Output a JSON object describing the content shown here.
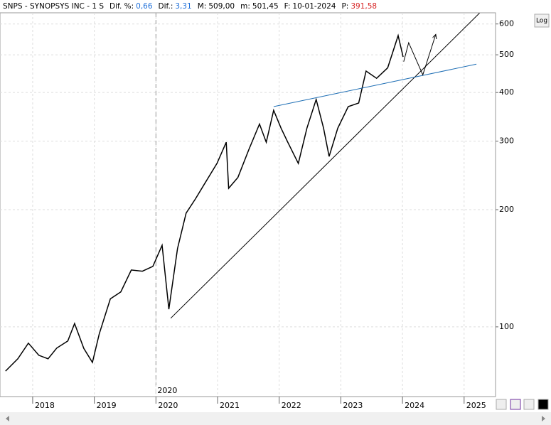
{
  "chart_data": {
    "type": "line",
    "log_scale": true,
    "grid": true,
    "header": [
      {
        "label": "SNPS - SYNOPSYS INC - 1 S"
      },
      {
        "label": "Dif. %:",
        "value": "0,66",
        "color": "#1e6fd9"
      },
      {
        "label": "Dif.:",
        "value": "3,31",
        "color": "#1e6fd9"
      },
      {
        "label": "M:",
        "value": "509,00",
        "color": "#000000"
      },
      {
        "label": "m:",
        "value": "501,45",
        "color": "#000000"
      },
      {
        "label": "F:",
        "value": "10-01-2024",
        "color": "#000000"
      },
      {
        "label": "P:",
        "value": "391,58",
        "color": "#d62020"
      }
    ],
    "scale_button": "Log",
    "cursor": {
      "x": 2020,
      "label": "2020"
    },
    "series": [
      {
        "name": "SNPS",
        "color": "#000000",
        "x": [
          2017.56,
          2017.76,
          2017.93,
          2018.1,
          2018.25,
          2018.39,
          2018.57,
          2018.68,
          2018.83,
          2018.97,
          2019.08,
          2019.26,
          2019.43,
          2019.6,
          2019.78,
          2019.95,
          2020.1,
          2020.21,
          2020.35,
          2020.49,
          2020.64,
          2020.81,
          2020.99,
          2021.14,
          2021.18,
          2021.33,
          2021.51,
          2021.68,
          2021.79,
          2021.91,
          2022.03,
          2022.14,
          2022.31,
          2022.45,
          2022.6,
          2022.72,
          2022.81,
          2022.95,
          2023.12,
          2023.29,
          2023.41,
          2023.58,
          2023.76,
          2023.93,
          2024.01
        ],
        "values": [
          77,
          82.8,
          90.8,
          84.5,
          82.8,
          88.2,
          92,
          102,
          88,
          81,
          95.9,
          118,
          123,
          140,
          139,
          143,
          162,
          111,
          159,
          196,
          213,
          236,
          263,
          298,
          227,
          242,
          286,
          332,
          298,
          360,
          324,
          298,
          263,
          324,
          384,
          324,
          274,
          324,
          368,
          376,
          454,
          435,
          463,
          560,
          494
        ]
      }
    ],
    "trendlines": [
      {
        "color": "#000000",
        "x": [
          2020.24,
          2025.25
        ],
        "values": [
          105.2,
          640
        ]
      },
      {
        "color": "#1f6fb5",
        "x": [
          2021.91,
          2025.2
        ],
        "values": [
          368,
          473
        ]
      },
      {
        "color": "#000000",
        "arrow": true,
        "x": [
          2024.02,
          2024.1,
          2024.33,
          2024.54
        ],
        "values": [
          480,
          537,
          444,
          564
        ]
      }
    ],
    "xlim": [
      2017.47,
      2025.51
    ],
    "xticks": [
      2018,
      2019,
      2020,
      2021,
      2022,
      2023,
      2024,
      2025
    ],
    "ylim": [
      66.2,
      641
    ],
    "yticks": [
      100,
      200,
      300,
      400,
      500,
      600
    ]
  }
}
